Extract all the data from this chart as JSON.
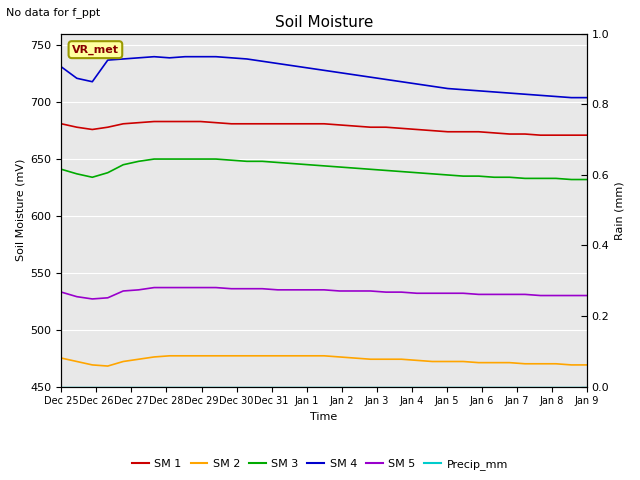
{
  "title": "Soil Moisture",
  "xlabel": "Time",
  "ylabel_left": "Soil Moisture (mV)",
  "ylabel_right": "Rain (mm)",
  "annotation": "No data for f_ppt",
  "legend_label": "VR_met",
  "ylim_left": [
    450,
    760
  ],
  "ylim_right": [
    0.0,
    1.0
  ],
  "yticks_left": [
    450,
    500,
    550,
    600,
    650,
    700,
    750
  ],
  "yticks_right": [
    0.0,
    0.2,
    0.4,
    0.6,
    0.8,
    1.0
  ],
  "background_color": "#e8e8e8",
  "fig_background": "#ffffff",
  "series": {
    "SM1": {
      "color": "#cc0000",
      "label": "SM 1",
      "points": [
        681,
        678,
        676,
        678,
        681,
        682,
        683,
        683,
        683,
        683,
        682,
        681,
        681,
        681,
        681,
        681,
        681,
        681,
        680,
        679,
        678,
        678,
        677,
        676,
        675,
        674,
        674,
        674,
        673,
        672,
        672,
        671,
        671,
        671,
        671
      ]
    },
    "SM2": {
      "color": "#ffa500",
      "label": "SM 2",
      "points": [
        475,
        472,
        469,
        468,
        472,
        474,
        476,
        477,
        477,
        477,
        477,
        477,
        477,
        477,
        477,
        477,
        477,
        477,
        476,
        475,
        474,
        474,
        474,
        473,
        472,
        472,
        472,
        471,
        471,
        471,
        470,
        470,
        470,
        469,
        469
      ]
    },
    "SM3": {
      "color": "#00aa00",
      "label": "SM 3",
      "points": [
        641,
        637,
        634,
        638,
        645,
        648,
        650,
        650,
        650,
        650,
        650,
        649,
        648,
        648,
        647,
        646,
        645,
        644,
        643,
        642,
        641,
        640,
        639,
        638,
        637,
        636,
        635,
        635,
        634,
        634,
        633,
        633,
        633,
        632,
        632
      ]
    },
    "SM4": {
      "color": "#0000cc",
      "label": "SM 4",
      "points": [
        731,
        721,
        718,
        737,
        738,
        739,
        740,
        739,
        740,
        740,
        740,
        739,
        738,
        736,
        734,
        732,
        730,
        728,
        726,
        724,
        722,
        720,
        718,
        716,
        714,
        712,
        711,
        710,
        709,
        708,
        707,
        706,
        705,
        704,
        704
      ]
    },
    "SM5": {
      "color": "#9900cc",
      "label": "SM 5",
      "points": [
        533,
        529,
        527,
        528,
        534,
        535,
        537,
        537,
        537,
        537,
        537,
        536,
        536,
        536,
        535,
        535,
        535,
        535,
        534,
        534,
        534,
        533,
        533,
        532,
        532,
        532,
        532,
        531,
        531,
        531,
        531,
        530,
        530,
        530,
        530
      ]
    },
    "Precip_mm": {
      "color": "#00cccc",
      "label": "Precip_mm",
      "points": [
        0,
        0,
        0,
        0,
        0,
        0,
        0,
        0,
        0,
        0,
        0,
        0,
        0,
        0,
        0,
        0,
        0,
        0,
        0,
        0,
        0,
        0,
        0,
        0,
        0,
        0,
        0,
        0,
        0,
        0,
        0,
        0,
        0,
        0,
        0
      ]
    }
  },
  "x_tick_labels": [
    "Dec 25",
    "Dec 26",
    "Dec 27",
    "Dec 28",
    "Dec 29",
    "Dec 30",
    "Dec 31",
    "Jan 1",
    "Jan 2",
    "Jan 3",
    "Jan 4",
    "Jan 5",
    "Jan 6",
    "Jan 7",
    "Jan 8",
    "Jan 9"
  ],
  "n_points": 35
}
